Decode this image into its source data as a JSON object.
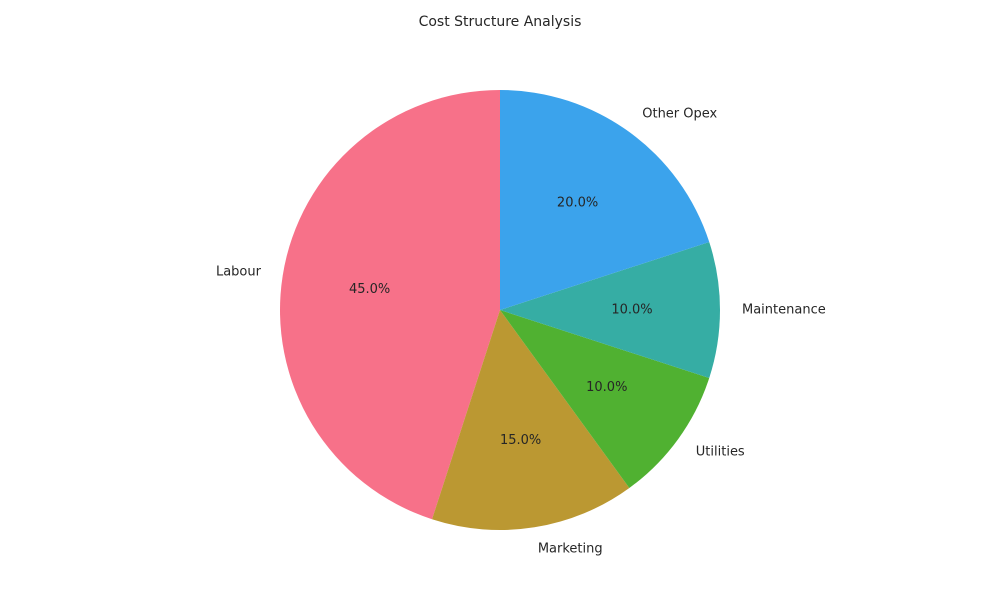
{
  "chart_data": {
    "type": "pie",
    "title": "Cost Structure Analysis",
    "categories": [
      "Labour",
      "Marketing",
      "Utilities",
      "Maintenance",
      "Other Opex"
    ],
    "values": [
      45.0,
      15.0,
      10.0,
      10.0,
      20.0
    ],
    "percent_labels": [
      "45.0%",
      "15.0%",
      "10.0%",
      "10.0%",
      "20.0%"
    ],
    "colors": [
      "#f77189",
      "#bb9832",
      "#50b131",
      "#36ada4",
      "#3ba3ec"
    ],
    "start_angle_deg": 90,
    "direction": "counterclockwise",
    "legend": "none"
  }
}
